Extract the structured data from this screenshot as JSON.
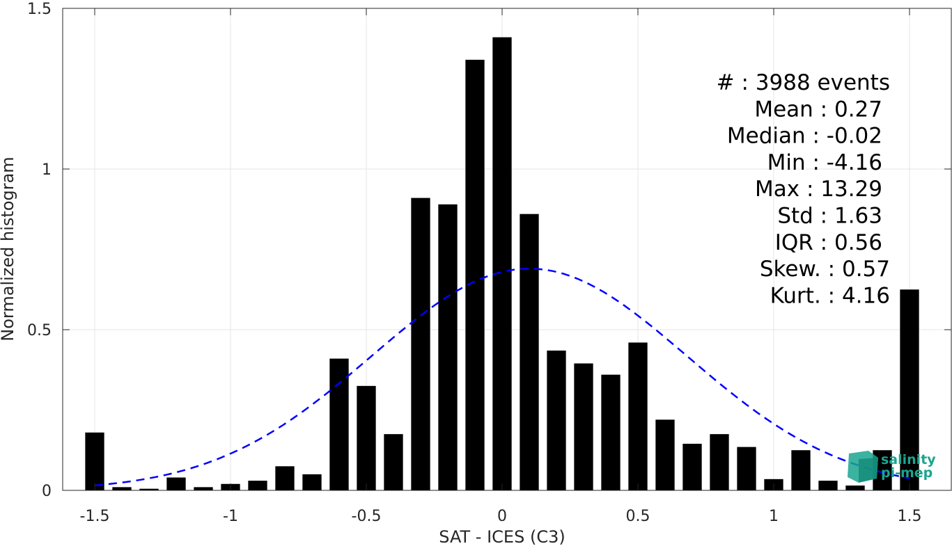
{
  "chart_data": {
    "type": "bar",
    "xlabel": "SAT - ICES (C3)",
    "ylabel": "Normalized histogram",
    "xlim": [
      -1.55,
      1.55
    ],
    "ylim": [
      0,
      1.5
    ],
    "xticks": [
      -1.5,
      -1,
      -0.5,
      0,
      0.5,
      1,
      1.5
    ],
    "xtick_labels": [
      "-1.5",
      "-1",
      "-0.5",
      "0",
      "0.5",
      "1",
      "1.5"
    ],
    "yticks": [
      0,
      0.5,
      1,
      1.5
    ],
    "ytick_labels": [
      "0",
      "0.5",
      "1",
      "1.5"
    ],
    "grid": true,
    "bar_width": 0.07,
    "x": [
      -1.5,
      -1.4,
      -1.3,
      -1.2,
      -1.1,
      -1.0,
      -0.9,
      -0.8,
      -0.7,
      -0.6,
      -0.5,
      -0.4,
      -0.3,
      -0.2,
      -0.1,
      0.0,
      0.1,
      0.2,
      0.3,
      0.4,
      0.5,
      0.6,
      0.7,
      0.8,
      0.9,
      1.0,
      1.1,
      1.2,
      1.3,
      1.4,
      1.5
    ],
    "values": [
      0.18,
      0.01,
      0.005,
      0.04,
      0.01,
      0.02,
      0.03,
      0.075,
      0.05,
      0.41,
      0.325,
      0.175,
      0.91,
      0.89,
      1.34,
      1.41,
      0.86,
      0.435,
      0.395,
      0.36,
      0.46,
      0.22,
      0.145,
      0.175,
      0.135,
      0.035,
      0.125,
      0.03,
      0.015,
      0.125,
      0.625
    ],
    "bar_color": "#000000",
    "fit": {
      "type": "normal",
      "mean": 0.1,
      "std": 0.58,
      "peak": 0.69,
      "x_range": [
        -1.5,
        1.5
      ],
      "color": "#0000ff",
      "style": "dashed"
    },
    "stats": [
      {
        "label": "#  : 3988 events"
      },
      {
        "label": "Mean : 0.27"
      },
      {
        "label": "Median : -0.02"
      },
      {
        "label": "Min : -4.16"
      },
      {
        "label": "Max : 13.29"
      },
      {
        "label": "Std : 1.63"
      },
      {
        "label": "IQR : 0.56"
      },
      {
        "label": "Skew. : 0.57"
      },
      {
        "label": "Kurt. : 4.16"
      }
    ]
  },
  "logo": {
    "line1": "salinity",
    "line2": "pi-mep",
    "color": "#1aa58f"
  }
}
